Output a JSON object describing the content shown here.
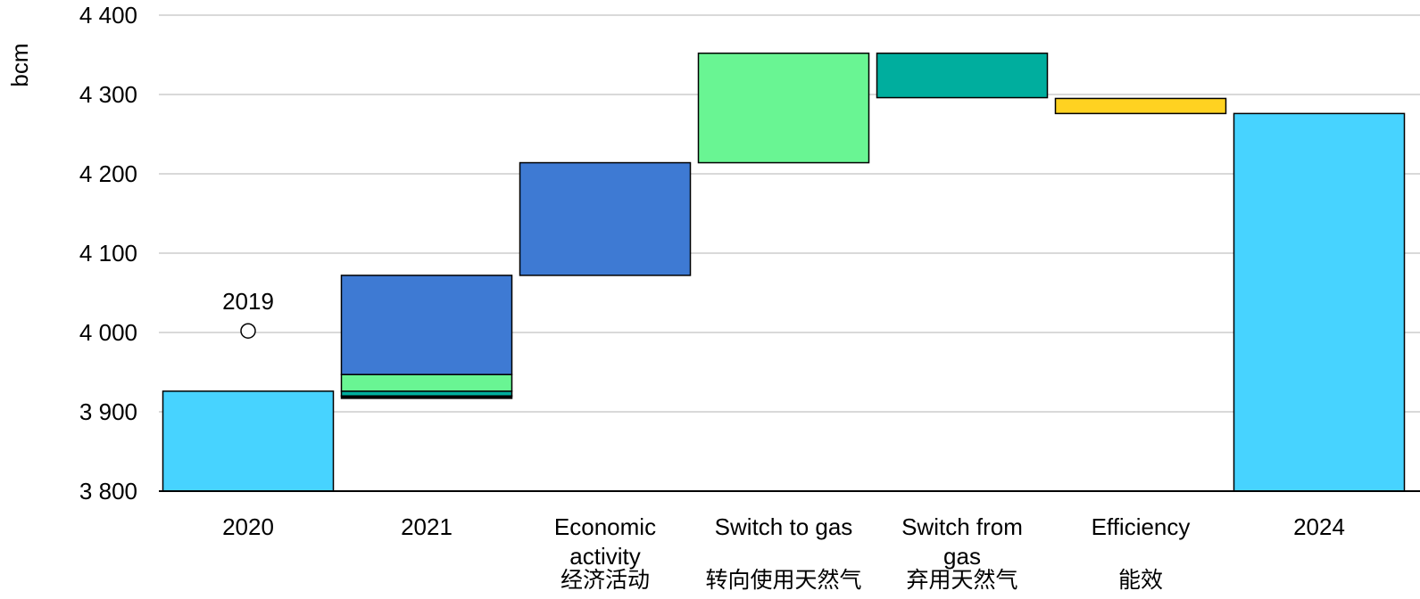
{
  "chart_data": {
    "type": "bar",
    "subtype": "waterfall",
    "ylabel": "bcm",
    "ylim": [
      3800,
      4400
    ],
    "yticks": [
      3800,
      3900,
      4000,
      4100,
      4200,
      4300,
      4400
    ],
    "ytick_labels": [
      "3 800",
      "3 900",
      "4 000",
      "4 100",
      "4 200",
      "4 300",
      "4 400"
    ],
    "grid": true,
    "categories": [
      {
        "label": [
          "2020"
        ],
        "label_cn": ""
      },
      {
        "label": [
          "2021"
        ],
        "label_cn": ""
      },
      {
        "label": [
          "Economic",
          "activity"
        ],
        "label_cn": "经济活动"
      },
      {
        "label": [
          "Switch to gas"
        ],
        "label_cn": "转向使用天然气"
      },
      {
        "label": [
          "Switch from",
          "gas"
        ],
        "label_cn": "弃用天然气"
      },
      {
        "label": [
          "Efficiency"
        ],
        "label_cn": "能效"
      },
      {
        "label": [
          "2024"
        ],
        "label_cn": ""
      }
    ],
    "segments": [
      {
        "category": 0,
        "base": 3800,
        "top": 3926,
        "color": "#47d3ff"
      },
      {
        "category": 1,
        "base": 3917,
        "top": 3920,
        "color": "#000000"
      },
      {
        "category": 1,
        "base": 3920,
        "top": 3926,
        "color": "#00ae9e"
      },
      {
        "category": 1,
        "base": 3926,
        "top": 3947,
        "color": "#69f593"
      },
      {
        "category": 1,
        "base": 3947,
        "top": 4072,
        "color": "#3e7ad3"
      },
      {
        "category": 2,
        "base": 4072,
        "top": 4214,
        "color": "#3e7ad3"
      },
      {
        "category": 3,
        "base": 4214,
        "top": 4352,
        "color": "#69f593"
      },
      {
        "category": 4,
        "base": 4296,
        "top": 4352,
        "color": "#00ae9e"
      },
      {
        "category": 5,
        "base": 4276,
        "top": 4295,
        "color": "#ffd221"
      },
      {
        "category": 6,
        "base": 3800,
        "top": 4276,
        "color": "#47d3ff"
      }
    ],
    "annotations": [
      {
        "category": 0,
        "value": 4002,
        "label": "2019",
        "marker": "circle"
      }
    ]
  }
}
